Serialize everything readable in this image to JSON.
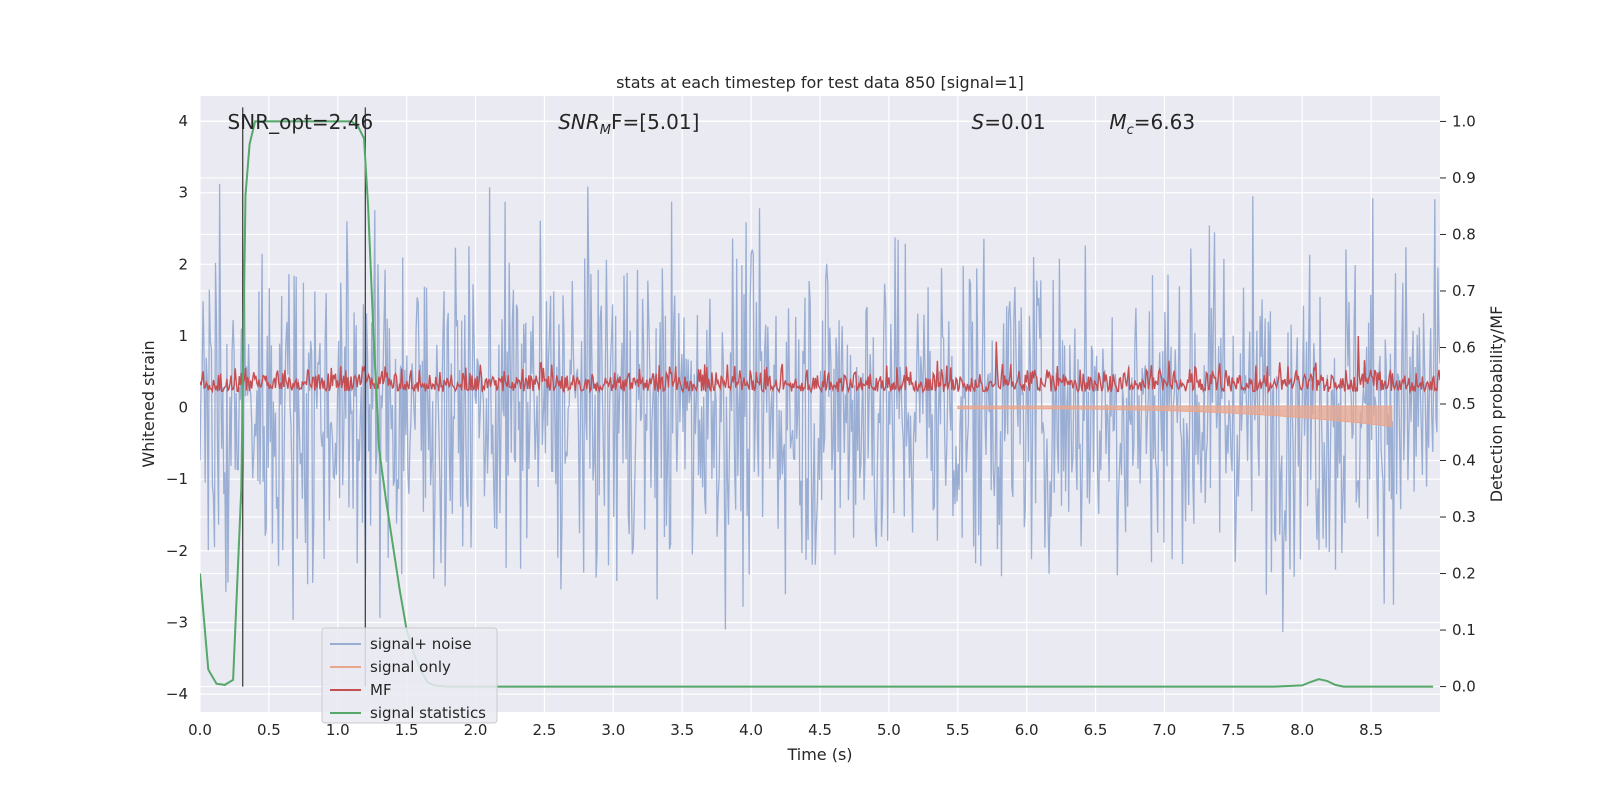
{
  "chart_data": {
    "type": "line",
    "title": "stats at each timestep for test data 850 [signal=1]",
    "xlabel": "Time (s)",
    "ylabel": "Whitened strain",
    "ylabel_right": "Detection probability/MF",
    "xlim": [
      0.0,
      9.0
    ],
    "ylim": [
      -4.25,
      4.35
    ],
    "ylim_right": [
      -0.045,
      1.045
    ],
    "xticks": [
      "0.0",
      "0.5",
      "1.0",
      "1.5",
      "2.0",
      "2.5",
      "3.0",
      "3.5",
      "4.0",
      "4.5",
      "5.0",
      "5.5",
      "6.0",
      "6.5",
      "7.0",
      "7.5",
      "8.0",
      "8.5"
    ],
    "yticks": [
      "4",
      "3",
      "2",
      "1",
      "0",
      "−1",
      "−2",
      "−3",
      "−4"
    ],
    "yticks_right": [
      "1.0",
      "0.9",
      "0.8",
      "0.7",
      "0.6",
      "0.5",
      "0.4",
      "0.3",
      "0.2",
      "0.1",
      "0.0"
    ],
    "grid": true,
    "legend_position": "lower-left",
    "annotations": [
      {
        "label": "SNR_opt=2.46",
        "x": 0.2,
        "y": 4.0
      },
      {
        "label_var": "SNR",
        "label_sub": "M",
        "label_rest": "F=[5.01]",
        "x": 2.6,
        "y": 4.0
      },
      {
        "label_var": "S",
        "label_rest": "=0.01",
        "x": 5.6,
        "y": 4.0
      },
      {
        "label_var": "M",
        "label_sub": "c",
        "label_rest": "=6.63",
        "x": 6.6,
        "y": 4.0
      }
    ],
    "vlines": [
      0.31,
      1.2
    ],
    "series": [
      {
        "name": "signal+ noise",
        "color": "#9aaed3",
        "axis": "left",
        "kind": "noise",
        "amplitude_range": [
          -3.8,
          4.0
        ]
      },
      {
        "name": "signal only",
        "color": "#e9a68c",
        "axis": "left",
        "kind": "chirp",
        "x_range": [
          5.5,
          8.65
        ],
        "min_value": -0.25
      },
      {
        "name": "MF",
        "color": "#c44e52",
        "axis": "left",
        "kind": "noise",
        "amplitude_range": [
          0.0,
          1.0
        ]
      },
      {
        "name": "signal statistics",
        "color": "#55a868",
        "axis": "right",
        "x": [
          0.0,
          0.06,
          0.12,
          0.18,
          0.24,
          0.3,
          0.33,
          0.36,
          0.4,
          0.5,
          0.6,
          0.7,
          0.8,
          0.9,
          1.0,
          1.1,
          1.15,
          1.19,
          1.22,
          1.26,
          1.3,
          1.35,
          1.4,
          1.45,
          1.5,
          1.55,
          1.6,
          1.65,
          1.7,
          1.8,
          2.0,
          3.0,
          4.0,
          5.0,
          6.0,
          7.0,
          7.8,
          8.0,
          8.06,
          8.12,
          8.18,
          8.24,
          8.3,
          8.5,
          8.95
        ],
        "y": [
          0.2,
          0.03,
          0.005,
          0.003,
          0.012,
          0.35,
          0.87,
          0.96,
          1.0,
          1.0,
          1.0,
          1.0,
          1.0,
          1.0,
          1.0,
          1.0,
          0.99,
          0.97,
          0.85,
          0.62,
          0.42,
          0.33,
          0.25,
          0.17,
          0.1,
          0.06,
          0.03,
          0.008,
          0.002,
          0.0,
          0.0,
          0.0,
          0.0,
          0.0,
          0.0,
          0.0,
          0.0,
          0.002,
          0.008,
          0.013,
          0.01,
          0.003,
          0.0,
          0.0,
          0.0
        ]
      }
    ]
  }
}
